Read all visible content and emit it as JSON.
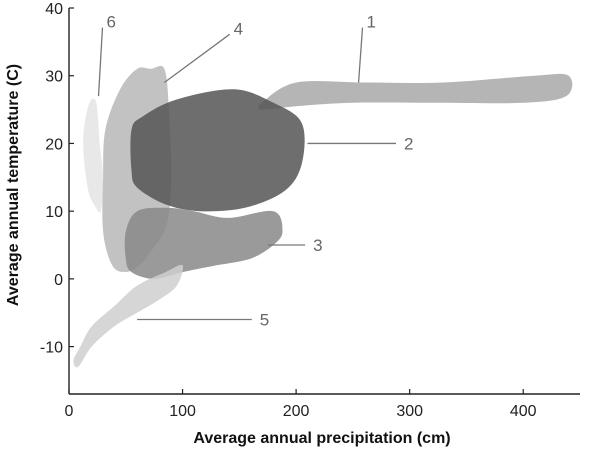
{
  "chart_data": {
    "type": "area",
    "title": "",
    "xlabel": "Average annual precipitation (cm)",
    "ylabel": "Average annual temperature (C)",
    "xlim": [
      0,
      450
    ],
    "ylim": [
      -17,
      40
    ],
    "x_ticks": [
      0,
      100,
      200,
      300,
      400
    ],
    "y_ticks": [
      -10,
      0,
      10,
      20,
      30,
      40
    ],
    "grid": false,
    "legend": "none",
    "regions": [
      {
        "label": "6",
        "color": "#e4e4e4",
        "outline": [
          [
            18,
            26
          ],
          [
            24,
            26
          ],
          [
            27,
            20
          ],
          [
            30,
            15
          ],
          [
            28,
            10
          ],
          [
            22,
            11
          ],
          [
            17,
            13
          ],
          [
            13,
            18
          ],
          [
            13,
            22
          ]
        ],
        "label_point": [
          33,
          38
        ],
        "leader_end": [
          26,
          27
        ]
      },
      {
        "label": "4",
        "color": "#b7b7b7",
        "outline": [
          [
            72,
            31
          ],
          [
            84,
            31
          ],
          [
            88,
            25
          ],
          [
            90,
            15
          ],
          [
            86,
            8
          ],
          [
            72,
            4
          ],
          [
            62,
            2
          ],
          [
            50,
            1
          ],
          [
            38,
            2
          ],
          [
            30,
            7
          ],
          [
            30,
            15
          ],
          [
            32,
            22
          ],
          [
            45,
            28
          ],
          [
            60,
            31
          ]
        ],
        "label_point": [
          145,
          37
        ],
        "leader_end": [
          84,
          29
        ]
      },
      {
        "label": "1",
        "color": "#a8a8a8",
        "outline": [
          [
            170,
            26
          ],
          [
            200,
            29
          ],
          [
            260,
            29
          ],
          [
            330,
            29
          ],
          [
            410,
            30
          ],
          [
            440,
            30
          ],
          [
            438,
            27
          ],
          [
            400,
            26
          ],
          [
            320,
            26
          ],
          [
            250,
            26
          ],
          [
            200,
            25.5
          ],
          [
            170,
            25
          ]
        ],
        "label_point": [
          262,
          38
        ],
        "leader_end": [
          255,
          29
        ]
      },
      {
        "label": "2",
        "color": "#555555",
        "outline": [
          [
            55,
            22
          ],
          [
            65,
            24
          ],
          [
            95,
            26.5
          ],
          [
            145,
            28
          ],
          [
            180,
            26
          ],
          [
            205,
            23
          ],
          [
            205,
            17
          ],
          [
            190,
            13
          ],
          [
            155,
            10.5
          ],
          [
            115,
            10
          ],
          [
            85,
            11
          ],
          [
            60,
            13.5
          ],
          [
            55,
            16
          ]
        ],
        "label_point": [
          295,
          20
        ],
        "leader_end": [
          210,
          20
        ]
      },
      {
        "label": "3",
        "color": "#888888",
        "outline": [
          [
            50,
            7
          ],
          [
            60,
            10
          ],
          [
            85,
            10.5
          ],
          [
            110,
            10
          ],
          [
            140,
            9
          ],
          [
            180,
            10
          ],
          [
            188,
            7
          ],
          [
            180,
            5
          ],
          [
            160,
            3
          ],
          [
            130,
            2
          ],
          [
            100,
            1
          ],
          [
            75,
            0
          ],
          [
            55,
            1
          ],
          [
            50,
            3
          ]
        ],
        "label_point": [
          215,
          5
        ],
        "leader_end": [
          175,
          5
        ]
      },
      {
        "label": "5",
        "color": "#cfcfcf",
        "outline": [
          [
            10,
            -10
          ],
          [
            20,
            -7
          ],
          [
            40,
            -4
          ],
          [
            60,
            -1
          ],
          [
            85,
            1
          ],
          [
            100,
            2
          ],
          [
            95,
            -1
          ],
          [
            80,
            -3
          ],
          [
            60,
            -5
          ],
          [
            40,
            -7
          ],
          [
            20,
            -10
          ],
          [
            8,
            -13
          ],
          [
            4,
            -12
          ]
        ],
        "label_point": [
          168,
          -6
        ],
        "leader_end": [
          60,
          -6
        ]
      }
    ]
  }
}
